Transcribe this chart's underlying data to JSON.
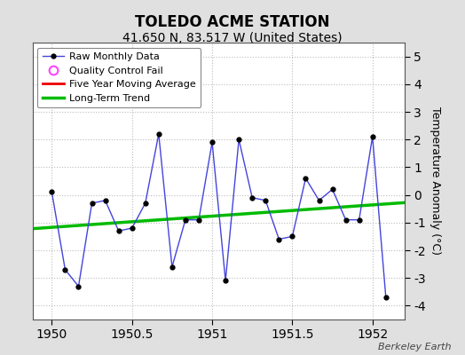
{
  "title": "TOLEDO ACME STATION",
  "subtitle": "41.650 N, 83.517 W (United States)",
  "ylabel": "Temperature Anomaly (°C)",
  "watermark": "Berkeley Earth",
  "xlim": [
    1949.88,
    1952.2
  ],
  "ylim": [
    -4.5,
    5.5
  ],
  "yticks": [
    -4,
    -3,
    -2,
    -1,
    0,
    1,
    2,
    3,
    4,
    5
  ],
  "xticks": [
    1950,
    1950.5,
    1951,
    1951.5,
    1952
  ],
  "background_color": "#e0e0e0",
  "plot_bg_color": "#ffffff",
  "raw_x": [
    1950.0,
    1950.0833,
    1950.1667,
    1950.25,
    1950.3333,
    1950.4167,
    1950.5,
    1950.5833,
    1950.6667,
    1950.75,
    1950.8333,
    1950.9167,
    1951.0,
    1951.0833,
    1951.1667,
    1951.25,
    1951.3333,
    1951.4167,
    1951.5,
    1951.5833,
    1951.6667,
    1951.75,
    1951.8333,
    1951.9167,
    1952.0,
    1952.0833
  ],
  "raw_y": [
    0.1,
    -2.7,
    -3.3,
    -0.3,
    -0.2,
    -1.3,
    -1.2,
    -0.3,
    2.2,
    -2.6,
    -0.9,
    -0.9,
    1.9,
    -3.1,
    2.0,
    -0.1,
    -0.2,
    -1.6,
    -1.5,
    0.6,
    -0.2,
    0.2,
    -0.9,
    -0.9,
    2.1,
    -3.7
  ],
  "trend_x": [
    1949.88,
    1952.2
  ],
  "trend_y": [
    -1.22,
    -0.28
  ],
  "raw_line_color": "#4444dd",
  "raw_marker_color": "#000000",
  "trend_color": "#00bb00",
  "mavg_color": "#ee0000",
  "qc_fail_color": "#ff44ff",
  "legend_labels": [
    "Raw Monthly Data",
    "Quality Control Fail",
    "Five Year Moving Average",
    "Long-Term Trend"
  ],
  "grid_color": "#bbbbbb",
  "title_fontsize": 12,
  "subtitle_fontsize": 10,
  "tick_fontsize": 10,
  "ylabel_fontsize": 9
}
